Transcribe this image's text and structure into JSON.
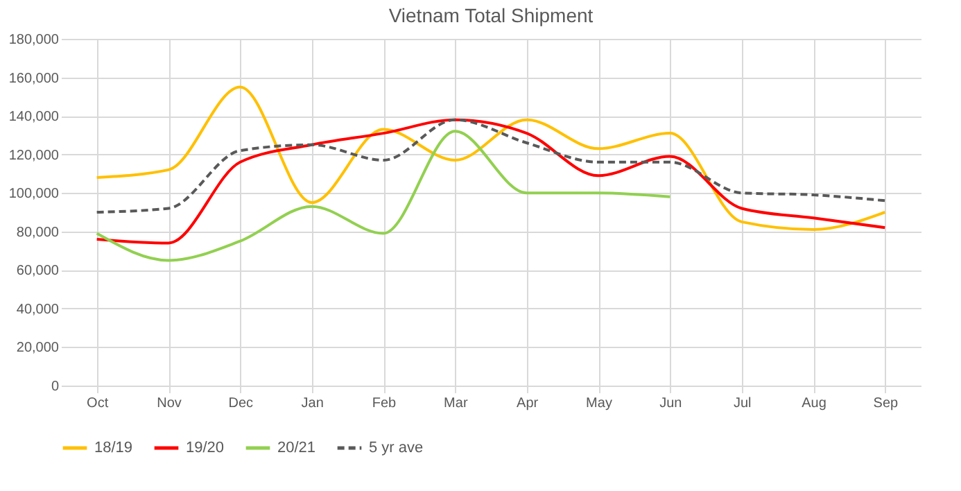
{
  "chart_data": {
    "type": "line",
    "title": "Vietnam Total Shipment",
    "categories": [
      "Oct",
      "Nov",
      "Dec",
      "Jan",
      "Feb",
      "Mar",
      "Apr",
      "May",
      "Jun",
      "Jul",
      "Aug",
      "Sep"
    ],
    "series": [
      {
        "name": "18/19",
        "color": "#ffc000",
        "values": [
          108000,
          112000,
          155000,
          95000,
          133000,
          117000,
          138000,
          123000,
          131000,
          85000,
          81000,
          90000
        ]
      },
      {
        "name": "19/20",
        "color": "#ff0000",
        "values": [
          76000,
          74000,
          116000,
          125000,
          131000,
          138000,
          131000,
          109000,
          119000,
          92000,
          87000,
          82000
        ]
      },
      {
        "name": "20/21",
        "color": "#92d050",
        "values": [
          79000,
          65000,
          75000,
          93000,
          79000,
          132000,
          100000,
          100000,
          98000,
          null,
          null,
          null
        ]
      },
      {
        "name": "5 yr ave",
        "color": "#595959",
        "line_style": "dashed",
        "values": [
          90000,
          92000,
          122000,
          125000,
          117000,
          138000,
          126000,
          116000,
          116000,
          100000,
          99000,
          96000
        ]
      }
    ],
    "ylim": [
      0,
      180000
    ],
    "yticks": [
      0,
      {
        "value": 20000,
        "label": "20,000"
      },
      {
        "value": 40000,
        "label": "40,000"
      },
      {
        "value": 60000,
        "label": "60,000"
      },
      {
        "value": 80000,
        "label": "80,000"
      },
      {
        "value": 100000,
        "label": "100,000"
      },
      {
        "value": 120000,
        "label": "120,000"
      },
      {
        "value": 140000,
        "label": "140,000"
      },
      {
        "value": 160000,
        "label": "160,000"
      },
      {
        "value": 180000,
        "label": "180,000"
      }
    ],
    "grid": true,
    "legend": "bottom",
    "marker": "none"
  }
}
